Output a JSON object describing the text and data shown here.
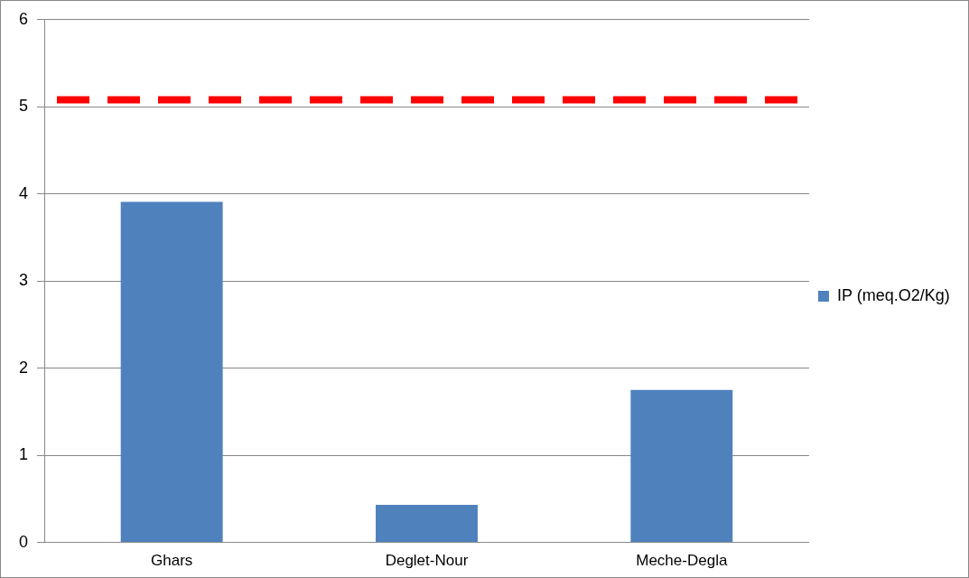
{
  "chart_data": {
    "type": "bar",
    "categories": [
      "Ghars",
      "Deglet-Nour",
      "Meche-Degla"
    ],
    "series": [
      {
        "name": "IP (meq.O2/Kg)",
        "color": "#4f81bd",
        "values": [
          3.91,
          0.43,
          1.75
        ]
      }
    ],
    "ylim": [
      0,
      6
    ],
    "yticks": [
      0,
      1,
      2,
      3,
      4,
      5,
      6
    ],
    "grid": "y",
    "legend": "right",
    "ref_lines": [
      {
        "axis": "y",
        "value": 5.08,
        "color": "#ff0000",
        "line_style": "dashed"
      }
    ]
  }
}
